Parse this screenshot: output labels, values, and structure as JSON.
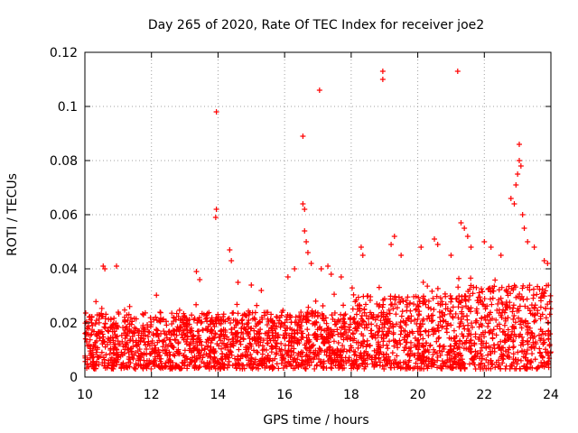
{
  "chart_data": {
    "type": "scatter",
    "title": "Day 265 of 2020, Rate Of TEC Index for receiver joe2",
    "xlabel": "GPS time / hours",
    "ylabel": "ROTI / TECUs",
    "xlim": [
      10,
      24
    ],
    "ylim": [
      0,
      0.12
    ],
    "xticks": [
      10,
      12,
      14,
      16,
      18,
      20,
      22,
      24
    ],
    "yticks": [
      0,
      0.02,
      0.04,
      0.06,
      0.08,
      0.1,
      0.12
    ],
    "xtick_labels": [
      "10",
      "12",
      "14",
      "16",
      "18",
      "20",
      "22",
      "24"
    ],
    "ytick_labels": [
      "0",
      "0.02",
      "0.04",
      "0.06",
      "0.08",
      "0.1",
      "0.12"
    ],
    "grid": true,
    "marker": "+",
    "marker_color": "#ff0000",
    "baseline_note": "Dense band of ROTI values between about 0.003 and 0.03 TECU/s across the whole 10-24 h range",
    "series": [
      {
        "name": "joe2",
        "points": [
          [
            10.55,
            0.041
          ],
          [
            10.6,
            0.04
          ],
          [
            10.95,
            0.041
          ],
          [
            13.35,
            0.039
          ],
          [
            13.45,
            0.036
          ],
          [
            13.95,
            0.098
          ],
          [
            13.95,
            0.062
          ],
          [
            13.93,
            0.059
          ],
          [
            14.35,
            0.047
          ],
          [
            14.4,
            0.043
          ],
          [
            14.6,
            0.035
          ],
          [
            15.0,
            0.034
          ],
          [
            15.3,
            0.032
          ],
          [
            16.1,
            0.037
          ],
          [
            16.3,
            0.04
          ],
          [
            16.55,
            0.089
          ],
          [
            16.55,
            0.064
          ],
          [
            16.6,
            0.062
          ],
          [
            16.6,
            0.054
          ],
          [
            16.65,
            0.05
          ],
          [
            16.7,
            0.046
          ],
          [
            16.8,
            0.042
          ],
          [
            17.05,
            0.106
          ],
          [
            17.1,
            0.04
          ],
          [
            17.3,
            0.041
          ],
          [
            17.4,
            0.038
          ],
          [
            17.7,
            0.037
          ],
          [
            18.3,
            0.048
          ],
          [
            18.35,
            0.045
          ],
          [
            18.95,
            0.113
          ],
          [
            18.95,
            0.11
          ],
          [
            19.2,
            0.049
          ],
          [
            19.3,
            0.052
          ],
          [
            19.5,
            0.045
          ],
          [
            20.1,
            0.048
          ],
          [
            20.5,
            0.051
          ],
          [
            20.6,
            0.049
          ],
          [
            21.0,
            0.045
          ],
          [
            21.2,
            0.113
          ],
          [
            21.3,
            0.057
          ],
          [
            21.4,
            0.055
          ],
          [
            21.5,
            0.052
          ],
          [
            21.6,
            0.048
          ],
          [
            22.0,
            0.05
          ],
          [
            22.2,
            0.048
          ],
          [
            22.5,
            0.045
          ],
          [
            22.8,
            0.066
          ],
          [
            22.9,
            0.064
          ],
          [
            22.95,
            0.071
          ],
          [
            23.0,
            0.075
          ],
          [
            23.05,
            0.086
          ],
          [
            23.05,
            0.08
          ],
          [
            23.1,
            0.078
          ],
          [
            23.15,
            0.06
          ],
          [
            23.2,
            0.055
          ],
          [
            23.3,
            0.05
          ],
          [
            23.5,
            0.048
          ],
          [
            23.8,
            0.043
          ],
          [
            23.9,
            0.042
          ]
        ]
      }
    ]
  }
}
